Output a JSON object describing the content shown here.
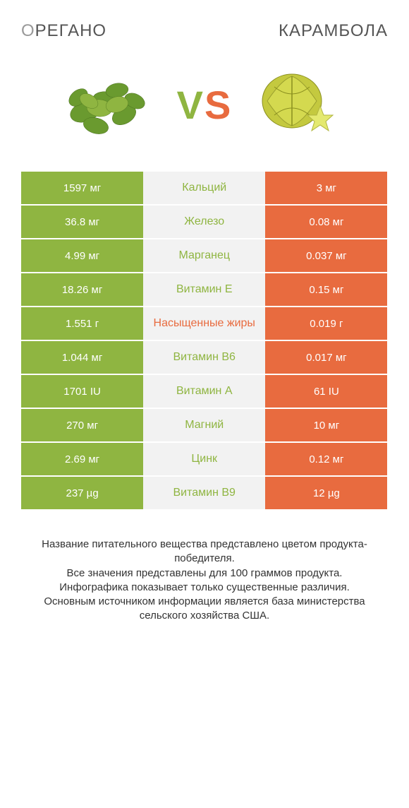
{
  "header": {
    "left_first": "O",
    "left_rest": "РЕГАНО",
    "right": "КАРАМБОЛА"
  },
  "vs": {
    "v": "V",
    "s": "S"
  },
  "colors": {
    "green": "#8fb541",
    "orange": "#e86b3f",
    "mid_bg": "#f2f2f2",
    "mid_text_green": "#8fb541",
    "mid_text_orange": "#e86b3f"
  },
  "rows": [
    {
      "label": "Кальций",
      "left": "1597 мг",
      "right": "3 мг",
      "winner": "left"
    },
    {
      "label": "Железо",
      "left": "36.8 мг",
      "right": "0.08 мг",
      "winner": "left"
    },
    {
      "label": "Марганец",
      "left": "4.99 мг",
      "right": "0.037 мг",
      "winner": "left"
    },
    {
      "label": "Витамин E",
      "left": "18.26 мг",
      "right": "0.15 мг",
      "winner": "left"
    },
    {
      "label": "Насыщенные жиры",
      "left": "1.551 г",
      "right": "0.019 г",
      "winner": "right"
    },
    {
      "label": "Витамин B6",
      "left": "1.044 мг",
      "right": "0.017 мг",
      "winner": "left"
    },
    {
      "label": "Витамин A",
      "left": "1701 IU",
      "right": "61 IU",
      "winner": "left"
    },
    {
      "label": "Магний",
      "left": "270 мг",
      "right": "10 мг",
      "winner": "left"
    },
    {
      "label": "Цинк",
      "left": "2.69 мг",
      "right": "0.12 мг",
      "winner": "left"
    },
    {
      "label": "Витамин B9",
      "left": "237 µg",
      "right": "12 µg",
      "winner": "left"
    }
  ],
  "footer": {
    "line1": "Название питательного вещества представлено цветом продукта-победителя.",
    "line2": "Все значения представлены для 100 граммов продукта.",
    "line3": "Инфографика показывает только существенные различия.",
    "line4": "Основным источником информации является база министерства сельского хозяйства США."
  }
}
